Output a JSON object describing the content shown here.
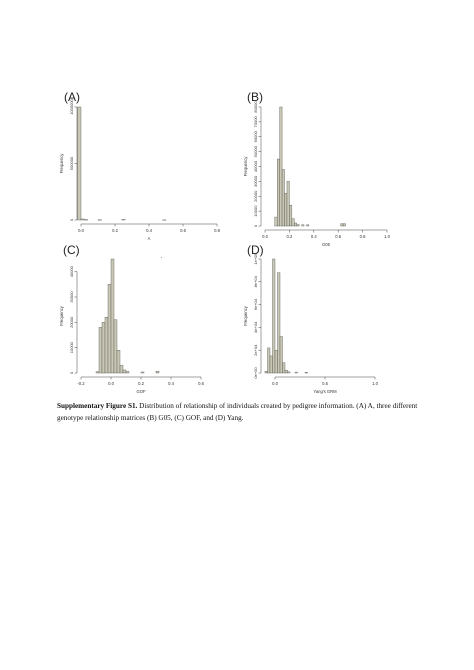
{
  "figure": {
    "caption_label": "Supplementary Figure S1.",
    "caption_text": " Distribution of relationship of individuals created by pedigree information. (A) A, three different genotype relationship matrices (B) G05, (C) GOF, and (D) Yang.",
    "colors": {
      "bar_fill": "#c9c8b4",
      "bar_stroke": "#555555",
      "axis": "#444444"
    }
  },
  "chart_data": [
    {
      "panel": "(A)",
      "type": "bar",
      "xlabel": "A",
      "ylabel": "Frequency",
      "xticks": [
        "0.0",
        "0.2",
        "0.4",
        "0.6",
        "0.8"
      ],
      "xtick_values": [
        0,
        0.2,
        0.4,
        0.6,
        0.8
      ],
      "yticks": [
        "0",
        "500000",
        "1000000"
      ],
      "ytick_values": [
        0,
        500000,
        1000000
      ],
      "xlim": [
        0,
        0.8
      ],
      "ylim": [
        0,
        1000000
      ],
      "bins": [
        {
          "x0": -0.02,
          "x1": 0.0,
          "v": 1000000
        },
        {
          "x0": 0.0,
          "x1": 0.02,
          "v": 9000
        },
        {
          "x0": 0.02,
          "x1": 0.04,
          "v": 3000
        },
        {
          "x0": 0.1,
          "x1": 0.12,
          "v": 2000
        },
        {
          "x0": 0.24,
          "x1": 0.26,
          "v": 5000
        },
        {
          "x0": 0.48,
          "x1": 0.5,
          "v": 1000
        }
      ]
    },
    {
      "panel": "(B)",
      "type": "bar",
      "xlabel": "G05",
      "ylabel": "Frequency",
      "xticks": [
        "0.0",
        "0.2",
        "0.4",
        "0.6",
        "0.8",
        "1.0"
      ],
      "xtick_values": [
        0,
        0.2,
        0.4,
        0.6,
        0.8,
        1.0
      ],
      "yticks": [
        "0",
        "10000",
        "20000",
        "30000",
        "40000",
        "50000",
        "60000",
        "70000",
        "80000"
      ],
      "ytick_values": [
        0,
        10000,
        20000,
        30000,
        40000,
        50000,
        60000,
        70000,
        80000
      ],
      "xlim": [
        0,
        1.0
      ],
      "ylim": [
        0,
        80000
      ],
      "bins": [
        {
          "x0": 0.08,
          "x1": 0.1,
          "v": 6000
        },
        {
          "x0": 0.1,
          "x1": 0.12,
          "v": 45000
        },
        {
          "x0": 0.12,
          "x1": 0.14,
          "v": 80000
        },
        {
          "x0": 0.14,
          "x1": 0.16,
          "v": 38000
        },
        {
          "x0": 0.16,
          "x1": 0.18,
          "v": 22000
        },
        {
          "x0": 0.18,
          "x1": 0.2,
          "v": 30000
        },
        {
          "x0": 0.2,
          "x1": 0.22,
          "v": 14000
        },
        {
          "x0": 0.22,
          "x1": 0.24,
          "v": 5000
        },
        {
          "x0": 0.24,
          "x1": 0.26,
          "v": 2000
        },
        {
          "x0": 0.26,
          "x1": 0.28,
          "v": 1000
        },
        {
          "x0": 0.3,
          "x1": 0.32,
          "v": 800
        },
        {
          "x0": 0.34,
          "x1": 0.36,
          "v": 800
        },
        {
          "x0": 0.62,
          "x1": 0.64,
          "v": 1500
        },
        {
          "x0": 0.64,
          "x1": 0.66,
          "v": 1500
        }
      ]
    },
    {
      "panel": "(C)",
      "type": "bar",
      "xlabel": "GOF",
      "ylabel": "Frequency",
      "xticks": [
        "-0.2",
        "0.0",
        "0.2",
        "0.4",
        "0.6"
      ],
      "xtick_values": [
        -0.2,
        0.0,
        0.2,
        0.4,
        0.6
      ],
      "yticks": [
        "0",
        "10000",
        "20000",
        "30000",
        "40000"
      ],
      "ytick_values": [
        0,
        10000,
        20000,
        30000,
        40000
      ],
      "xlim": [
        -0.2,
        0.6
      ],
      "ylim": [
        0,
        45000
      ],
      "bins": [
        {
          "x0": -0.1,
          "x1": -0.08,
          "v": 500
        },
        {
          "x0": -0.08,
          "x1": -0.06,
          "v": 18000
        },
        {
          "x0": -0.06,
          "x1": -0.04,
          "v": 20000
        },
        {
          "x0": -0.04,
          "x1": -0.02,
          "v": 22000
        },
        {
          "x0": -0.02,
          "x1": 0.0,
          "v": 35000
        },
        {
          "x0": 0.0,
          "x1": 0.02,
          "v": 45000
        },
        {
          "x0": 0.02,
          "x1": 0.04,
          "v": 21000
        },
        {
          "x0": 0.04,
          "x1": 0.06,
          "v": 9000
        },
        {
          "x0": 0.06,
          "x1": 0.08,
          "v": 3000
        },
        {
          "x0": 0.08,
          "x1": 0.1,
          "v": 1200
        },
        {
          "x0": 0.1,
          "x1": 0.12,
          "v": 600
        },
        {
          "x0": 0.2,
          "x1": 0.22,
          "v": 400
        },
        {
          "x0": 0.3,
          "x1": 0.32,
          "v": 700
        }
      ]
    },
    {
      "panel": "(D)",
      "type": "bar",
      "xlabel": "Yang's GRM",
      "ylabel": "Frequency",
      "xticks": [
        "0.0",
        "0.5",
        "1.0"
      ],
      "xtick_values": [
        0,
        0.5,
        1.0
      ],
      "yticks": [
        "0e+00",
        "2e+04",
        "4e+04",
        "6e+04",
        "8e+04",
        "1e+05"
      ],
      "ytick_values": [
        0,
        20000,
        40000,
        60000,
        80000,
        100000
      ],
      "xlim": [
        -0.1,
        1.1
      ],
      "ylim": [
        0,
        100000
      ],
      "bins": [
        {
          "x0": -0.1,
          "x1": -0.075,
          "v": 1500
        },
        {
          "x0": -0.075,
          "x1": -0.05,
          "v": 22000
        },
        {
          "x0": -0.05,
          "x1": -0.025,
          "v": 15000
        },
        {
          "x0": -0.025,
          "x1": 0.0,
          "v": 100000
        },
        {
          "x0": 0.0,
          "x1": 0.025,
          "v": 20000
        },
        {
          "x0": 0.025,
          "x1": 0.05,
          "v": 88000
        },
        {
          "x0": 0.05,
          "x1": 0.075,
          "v": 32000
        },
        {
          "x0": 0.075,
          "x1": 0.1,
          "v": 9000
        },
        {
          "x0": 0.1,
          "x1": 0.125,
          "v": 2500
        },
        {
          "x0": 0.125,
          "x1": 0.15,
          "v": 1000
        },
        {
          "x0": 0.2,
          "x1": 0.225,
          "v": 800
        },
        {
          "x0": 0.3,
          "x1": 0.325,
          "v": 600
        }
      ]
    }
  ]
}
